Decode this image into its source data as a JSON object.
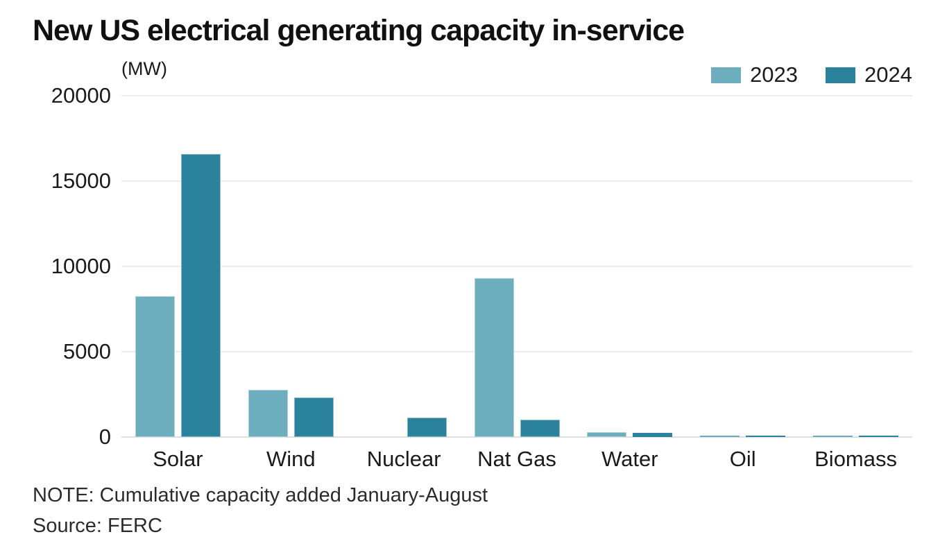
{
  "title": "New US electrical generating capacity in-service",
  "unit_label": "(MW)",
  "note": "NOTE: Cumulative capacity added January-August",
  "source": "Source: FERC",
  "colors": {
    "series_2023": "#6cadbe",
    "series_2024": "#2a829c",
    "gridline": "#ececec",
    "baseline": "#dfdfdf",
    "text": "#1a1a1a",
    "title_text": "#111111"
  },
  "chart_data": {
    "type": "bar",
    "title": "New US electrical generating capacity in-service",
    "ylabel": "(MW)",
    "categories": [
      "Solar",
      "Wind",
      "Nuclear",
      "Nat Gas",
      "Water",
      "Oil",
      "Biomass"
    ],
    "series": [
      {
        "name": "2023",
        "color": "#6cadbe",
        "values": [
          8270,
          2770,
          0,
          9290,
          280,
          70,
          100
        ]
      },
      {
        "name": "2024",
        "color": "#2a829c",
        "values": [
          16580,
          2320,
          1140,
          1010,
          240,
          60,
          50
        ]
      }
    ],
    "ylim": [
      0,
      20000
    ],
    "yticks": [
      0,
      5000,
      10000,
      15000,
      20000
    ],
    "grid": "horizontal",
    "legend_position": "top-right"
  }
}
